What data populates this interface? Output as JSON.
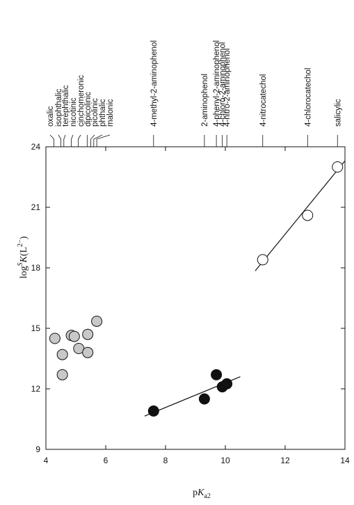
{
  "chart_data": {
    "type": "scatter",
    "xlabel": "pKa2",
    "ylabel": "logSK(L2−)",
    "xlim": [
      4,
      14
    ],
    "ylim": [
      9,
      24
    ],
    "x_ticks": [
      "4",
      "6",
      "8",
      "10",
      "12",
      "14"
    ],
    "y_ticks": [
      "9",
      "12",
      "15",
      "18",
      "21",
      "24"
    ],
    "x_tick_values": [
      4,
      6,
      8,
      10,
      12,
      14
    ],
    "y_tick_values": [
      9,
      12,
      15,
      18,
      21,
      24
    ],
    "top_labels": [
      {
        "label": "oxalic",
        "x": 4.27
      },
      {
        "label": "isophthalic",
        "x": 4.5
      },
      {
        "label": "terephthalic",
        "x": 4.6
      },
      {
        "label": "nicotinic",
        "x": 4.85
      },
      {
        "label": "cinchomeronic",
        "x": 5.08
      },
      {
        "label": "dipicolinic",
        "x": 5.38
      },
      {
        "label": "picolinic",
        "x": 5.5
      },
      {
        "label": "phthalic",
        "x": 5.6
      },
      {
        "label": "malonic",
        "x": 5.7
      },
      {
        "label": "4-methyl-2-aminophenol",
        "x": 7.6
      },
      {
        "label": "2-aminophenol",
        "x": 9.3
      },
      {
        "label": "4-phenyl-2-aminophenol",
        "x": 9.7
      },
      {
        "label": "4-chloro-2-aminophenol",
        "x": 9.9
      },
      {
        "label": "4-nitro-2-aminophenol",
        "x": 10.05
      },
      {
        "label": "4-nitrocatechol",
        "x": 11.25
      },
      {
        "label": "4-chlorocatechol",
        "x": 12.75
      },
      {
        "label": "salicylic",
        "x": 13.75
      }
    ],
    "series": [
      {
        "style": "gray-filled",
        "fill": "#c8c8c8",
        "points": [
          {
            "x": 4.3,
            "y": 14.5
          },
          {
            "x": 4.55,
            "y": 13.7
          },
          {
            "x": 4.55,
            "y": 12.7
          },
          {
            "x": 4.85,
            "y": 14.65
          },
          {
            "x": 4.95,
            "y": 14.6
          },
          {
            "x": 5.1,
            "y": 14.0
          },
          {
            "x": 5.4,
            "y": 14.7
          },
          {
            "x": 5.4,
            "y": 13.8
          },
          {
            "x": 5.7,
            "y": 15.35
          }
        ]
      },
      {
        "style": "black-filled",
        "fill": "#111111",
        "points": [
          {
            "x": 7.6,
            "y": 10.9
          },
          {
            "x": 9.3,
            "y": 11.5
          },
          {
            "x": 9.7,
            "y": 12.7
          },
          {
            "x": 9.9,
            "y": 12.1
          },
          {
            "x": 10.05,
            "y": 12.25
          }
        ],
        "fit": {
          "x1": 7.3,
          "y1": 10.65,
          "x2": 10.5,
          "y2": 12.6
        }
      },
      {
        "style": "open",
        "fill": "#ffffff",
        "points": [
          {
            "x": 11.25,
            "y": 18.4
          },
          {
            "x": 12.75,
            "y": 20.6
          },
          {
            "x": 13.75,
            "y": 23.0
          }
        ],
        "fit": {
          "x1": 11.0,
          "y1": 17.85,
          "x2": 14.0,
          "y2": 23.3
        }
      }
    ]
  }
}
